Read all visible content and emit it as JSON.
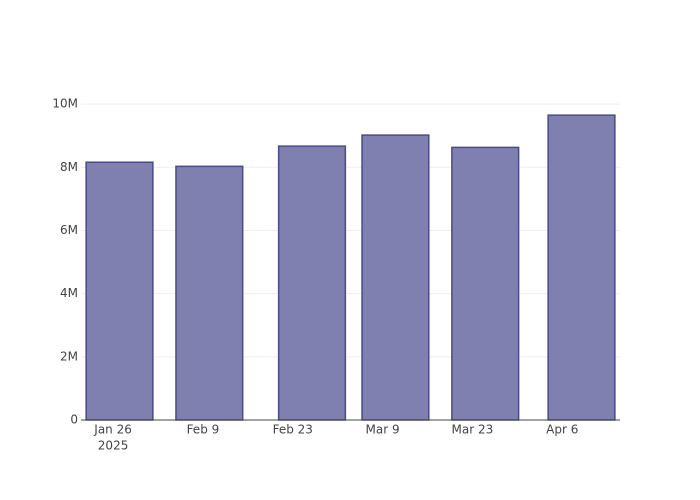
{
  "chart_data": {
    "type": "bar",
    "x": [
      "2025-01-27",
      "2025-02-10",
      "2025-02-26",
      "2025-03-11",
      "2025-03-25",
      "2025-04-09"
    ],
    "values": [
      8160000,
      8030000,
      8670000,
      9020000,
      8630000,
      9650000
    ],
    "color": "#7f7fb0",
    "line_color": "#4b4b85",
    "xlim": [
      "2025-01-21",
      "2025-04-15"
    ],
    "xticks": [
      {
        "value": "2025-01-26",
        "label": "Jan 26"
      },
      {
        "value": "2025-02-09",
        "label": "Feb 9"
      },
      {
        "value": "2025-02-23",
        "label": "Feb 23"
      },
      {
        "value": "2025-03-09",
        "label": "Mar 9"
      },
      {
        "value": "2025-03-23",
        "label": "Mar 23"
      },
      {
        "value": "2025-04-06",
        "label": "Apr 6"
      }
    ],
    "xtick_year": "2025",
    "ylim": [
      0,
      10130000
    ],
    "yticks": [
      0,
      {
        "value": 2000000,
        "label": "2M"
      },
      {
        "value": 4000000,
        "label": "4M"
      },
      {
        "value": 6000000,
        "label": "6M"
      },
      {
        "value": 8000000,
        "label": "8M"
      },
      {
        "value": 10000000,
        "label": "10M"
      }
    ],
    "grid": true
  }
}
